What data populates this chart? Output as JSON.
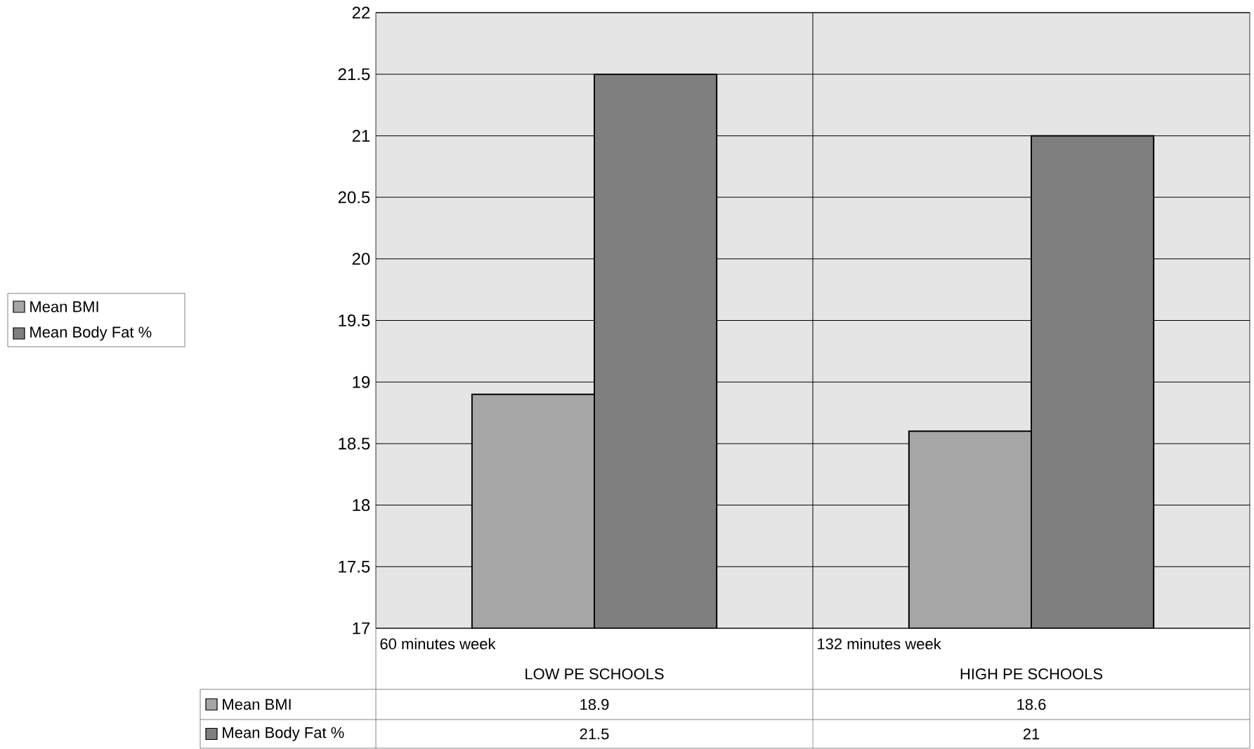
{
  "chart_data": {
    "type": "bar",
    "categories": [
      "LOW PE SCHOOLS",
      "HIGH PE SCHOOLS"
    ],
    "series": [
      {
        "name": "Mean BMI",
        "color": "#a6a6a6",
        "values": [
          18.9,
          18.6
        ]
      },
      {
        "name": "Mean Body Fat %",
        "color": "#7f7f7f",
        "values": [
          21.5,
          21
        ]
      }
    ],
    "annotations": [
      "60 minutes week",
      "132 minutes week"
    ],
    "ylim": [
      17,
      22
    ],
    "yticks": [
      17,
      17.5,
      18,
      18.5,
      19,
      19.5,
      20,
      20.5,
      21,
      21.5,
      22
    ],
    "grid": true,
    "legend": "left",
    "data_labels": true
  }
}
